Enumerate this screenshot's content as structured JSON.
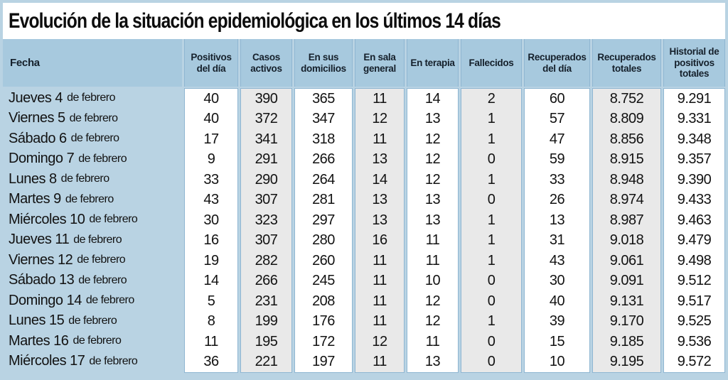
{
  "title": "Evolución de la situación epidemiológica en los últimos 14 días",
  "colors": {
    "outer_border": "#b9d3e3",
    "header_blue": "#a7c9de",
    "panel_border_blue": "#8fb6d2",
    "shaded_column_gray": "#e9e9e9",
    "text": "#121212"
  },
  "chart_data": {
    "type": "table",
    "title": "Evolución de la situación epidemiológica en los últimos 14 días",
    "columns": [
      {
        "id": "fecha",
        "label": "Fecha",
        "shaded": false
      },
      {
        "id": "positivos-dia",
        "label": "Positivos del día",
        "shaded": false
      },
      {
        "id": "casos-activos",
        "label": "Casos activos",
        "shaded": true
      },
      {
        "id": "domicilios",
        "label": "En sus domicilios",
        "shaded": false
      },
      {
        "id": "sala-general",
        "label": "En sala general",
        "shaded": true
      },
      {
        "id": "terapia",
        "label": "En terapia",
        "shaded": false
      },
      {
        "id": "fallecidos",
        "label": "Fallecidos",
        "shaded": true
      },
      {
        "id": "recuperados-dia",
        "label": "Recuperados del día",
        "shaded": false
      },
      {
        "id": "recuperados-totales",
        "label": "Recuperados totales",
        "shaded": true
      },
      {
        "id": "historial-positivos",
        "label": "Historial de positivos totales",
        "shaded": false
      }
    ],
    "rows": [
      {
        "date": "Jueves 4",
        "suffix": "de febrero",
        "values": [
          "40",
          "390",
          "365",
          "11",
          "14",
          "2",
          "60",
          "8.752",
          "9.291"
        ]
      },
      {
        "date": "Viernes 5",
        "suffix": "de febrero",
        "values": [
          "40",
          "372",
          "347",
          "12",
          "13",
          "1",
          "57",
          "8.809",
          "9.331"
        ]
      },
      {
        "date": "Sábado 6",
        "suffix": "de febrero",
        "values": [
          "17",
          "341",
          "318",
          "11",
          "12",
          "1",
          "47",
          "8.856",
          "9.348"
        ]
      },
      {
        "date": "Domingo 7",
        "suffix": "de febrero",
        "values": [
          "9",
          "291",
          "266",
          "13",
          "12",
          "0",
          "59",
          "8.915",
          "9.357"
        ]
      },
      {
        "date": "Lunes 8",
        "suffix": "de febrero",
        "values": [
          "33",
          "290",
          "264",
          "14",
          "12",
          "1",
          "33",
          "8.948",
          "9.390"
        ]
      },
      {
        "date": "Martes 9",
        "suffix": "de febrero",
        "values": [
          "43",
          "307",
          "281",
          "13",
          "13",
          "0",
          "26",
          "8.974",
          "9.433"
        ]
      },
      {
        "date": "Miércoles 10",
        "suffix": "de febrero",
        "values": [
          "30",
          "323",
          "297",
          "13",
          "13",
          "1",
          "13",
          "8.987",
          "9.463"
        ]
      },
      {
        "date": "Jueves 11",
        "suffix": "de febrero",
        "values": [
          "16",
          "307",
          "280",
          "16",
          "11",
          "1",
          "31",
          "9.018",
          "9.479"
        ]
      },
      {
        "date": "Viernes 12",
        "suffix": "de febrero",
        "values": [
          "19",
          "282",
          "260",
          "11",
          "11",
          "1",
          "43",
          "9.061",
          "9.498"
        ]
      },
      {
        "date": "Sábado 13",
        "suffix": "de febrero",
        "values": [
          "14",
          "266",
          "245",
          "11",
          "10",
          "0",
          "30",
          "9.091",
          "9.512"
        ]
      },
      {
        "date": "Domingo 14",
        "suffix": "de febrero",
        "values": [
          "5",
          "231",
          "208",
          "11",
          "12",
          "0",
          "40",
          "9.131",
          "9.517"
        ]
      },
      {
        "date": "Lunes 15",
        "suffix": "de febrero",
        "values": [
          "8",
          "199",
          "176",
          "11",
          "12",
          "1",
          "39",
          "9.170",
          "9.525"
        ]
      },
      {
        "date": "Martes 16",
        "suffix": "de febrero",
        "values": [
          "11",
          "195",
          "172",
          "12",
          "11",
          "0",
          "15",
          "9.185",
          "9.536"
        ]
      },
      {
        "date": "Miércoles 17",
        "suffix": "de febrero",
        "values": [
          "36",
          "221",
          "197",
          "11",
          "13",
          "0",
          "10",
          "9.195",
          "9.572"
        ]
      }
    ]
  }
}
